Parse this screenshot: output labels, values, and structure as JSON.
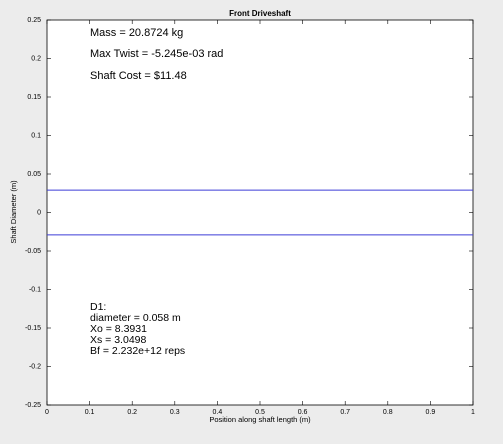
{
  "chart_data": {
    "type": "line",
    "title": "Front Driveshaft",
    "xlabel": "Position along shaft length (m)",
    "ylabel": "Shaft Diameter (m)",
    "x": [
      0,
      1
    ],
    "series": [
      {
        "color": "#3c3cd8",
        "values": [
          0.029,
          0.029
        ]
      },
      {
        "color": "#3c3cd8",
        "values": [
          -0.029,
          -0.029
        ]
      }
    ],
    "xlim": [
      0,
      1
    ],
    "xticks": [
      0,
      0.1,
      0.2,
      0.3,
      0.4,
      0.5,
      0.6,
      0.7,
      0.8,
      0.9,
      1
    ],
    "ylim": [
      -0.25,
      0.25
    ],
    "yticks": [
      0.25,
      0.2,
      0.15,
      0.1,
      0.05,
      0,
      -0.05,
      -0.1,
      -0.15,
      -0.2,
      -0.25
    ],
    "grid": false,
    "annotations": [
      "Mass = 20.8724 kg",
      "Max Twist = -5.245e-03 rad",
      "Shaft Cost = $11.48",
      "D1:",
      "diameter = 0.058 m",
      "Xo = 8.3931",
      "Xs = 3.0498",
      "Bf = 2.232e+12 reps"
    ]
  }
}
